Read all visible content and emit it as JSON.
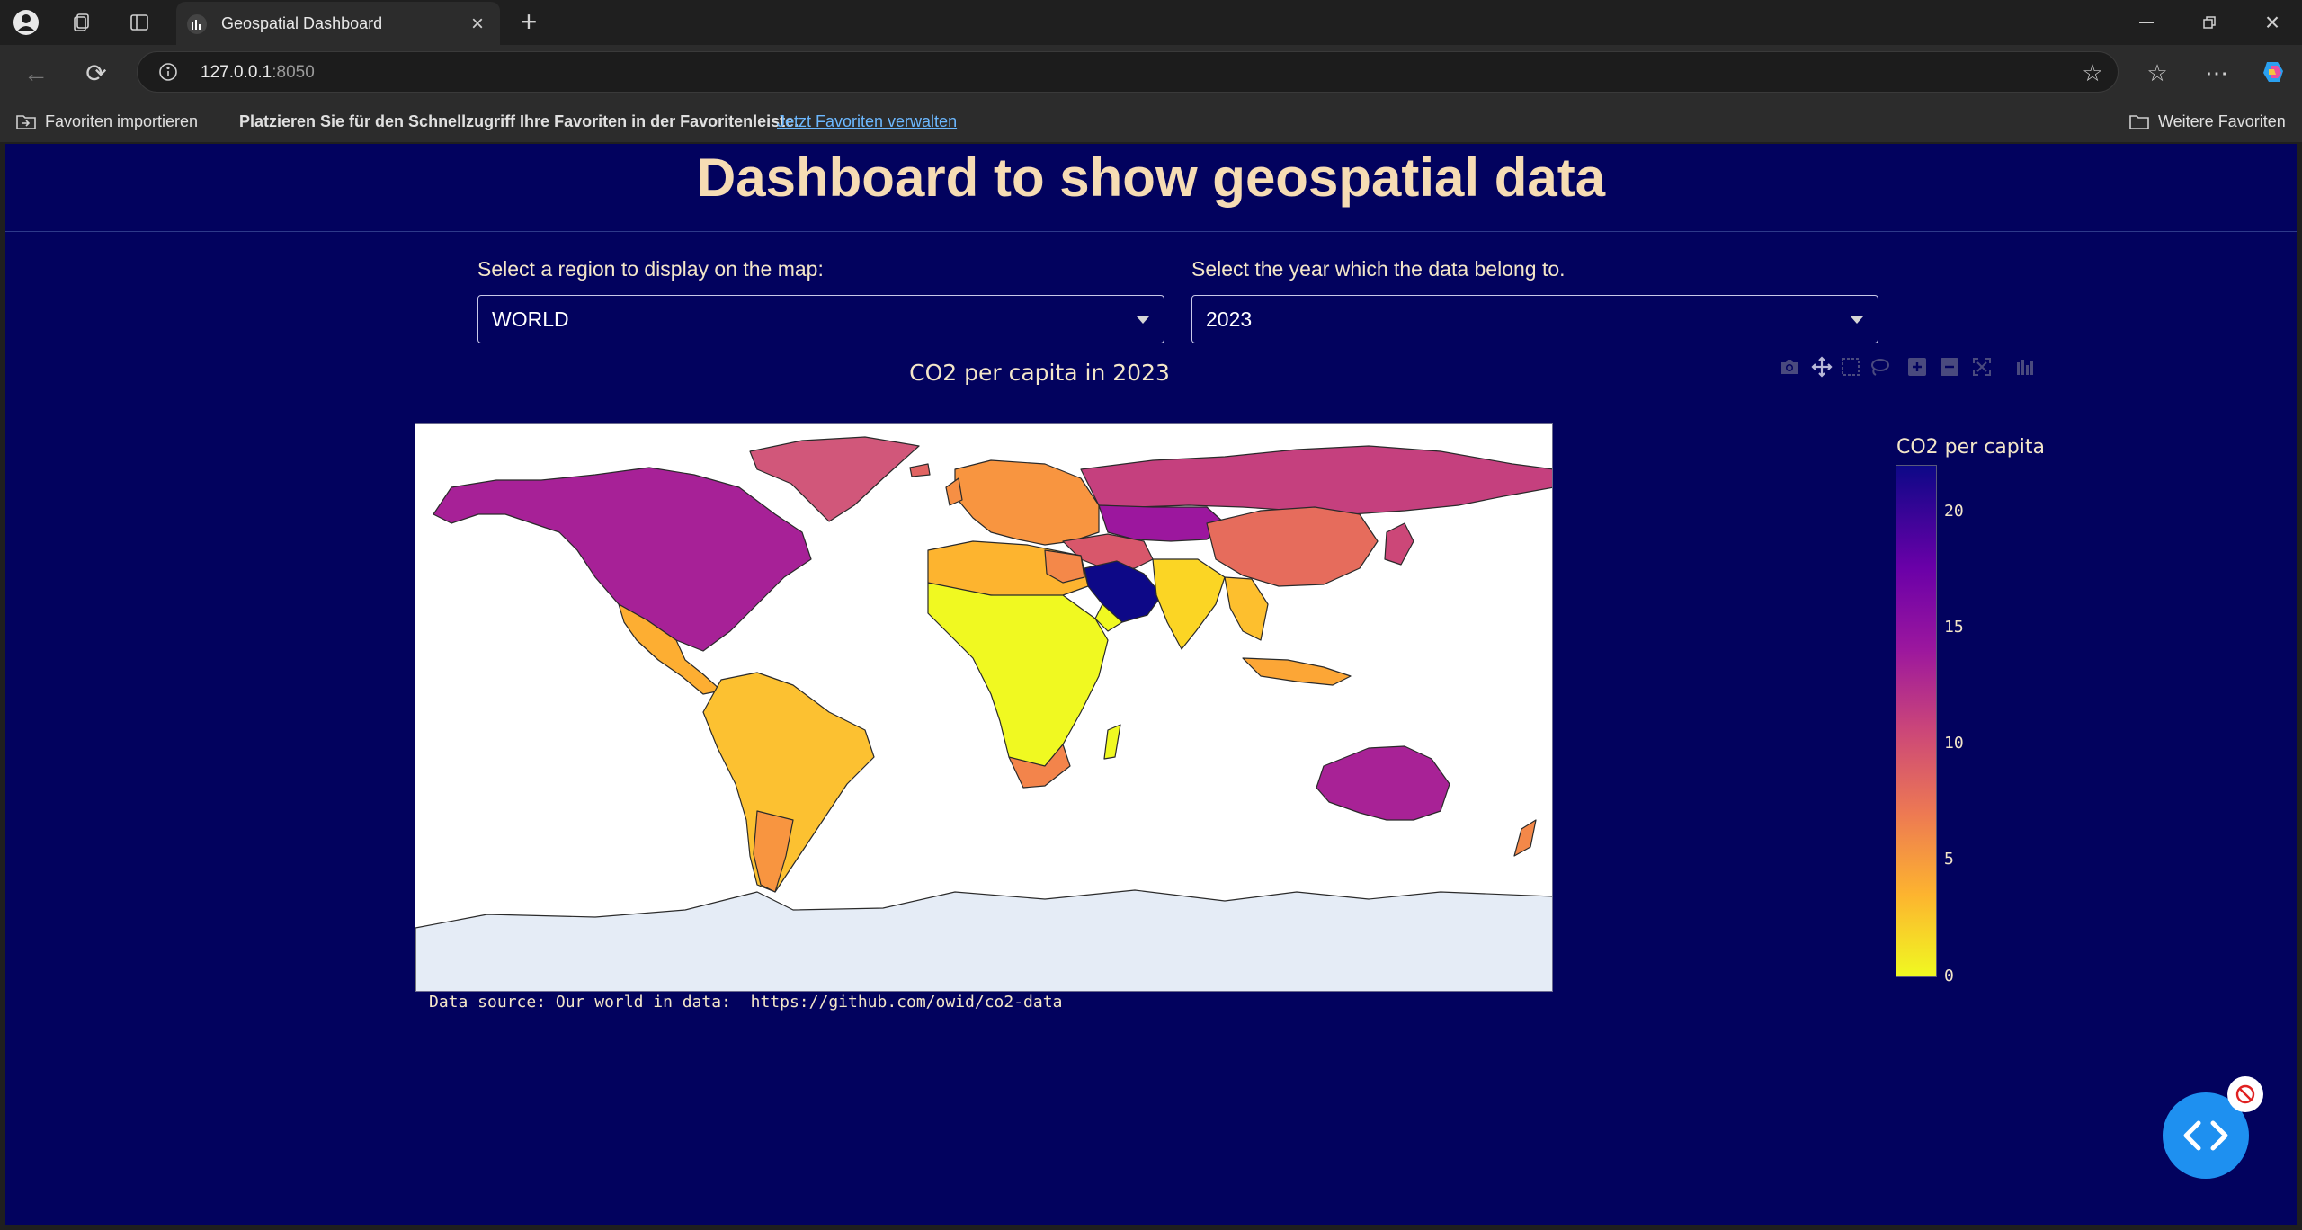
{
  "browser": {
    "tab_title": "Geospatial Dashboard",
    "url_host": "127.0.0.1",
    "url_port": ":8050",
    "favorites_bar": {
      "import_label": "Favoriten importieren",
      "hint_text": "Platzieren Sie für den Schnellzugriff Ihre Favoriten in der Favoritenleiste.",
      "manage_link": "Jetzt Favoriten verwalten",
      "other_favorites": "Weitere Favoriten"
    }
  },
  "dashboard": {
    "title": "Dashboard to show geospatial data",
    "region_label": "Select a region to display on the map:",
    "region_value": "WORLD",
    "year_label": "Select the year which the data belong to.",
    "year_value": "2023"
  },
  "chart": {
    "title": "CO2 per capita in 2023",
    "source": "Data source: Our world in data:  https://github.com/owid/co2-data",
    "colorbar_title": "CO2 per capita",
    "modebar_icons": [
      "camera-icon",
      "pan-icon",
      "box-select-icon",
      "lasso-icon",
      "zoom-in-icon",
      "zoom-out-icon",
      "autoscale-icon",
      "plotly-logo-icon"
    ]
  },
  "chart_data": {
    "type": "choropleth",
    "title": "CO2 per capita in 2023",
    "colorbar_title": "CO2 per capita",
    "colorscale": [
      "#f0f921",
      "#fdb42f",
      "#ed7953",
      "#cc4778",
      "#9c179e",
      "#6a00a8",
      "#0d0887"
    ],
    "colorbar_ticks": [
      "20",
      "15",
      "10",
      "5",
      "0"
    ],
    "colorbar_range": [
      0,
      22
    ],
    "regions": [
      {
        "name": "North America",
        "approx_value": 15
      },
      {
        "name": "Russia",
        "approx_value": 11.5
      },
      {
        "name": "Greenland",
        "approx_value": 10
      },
      {
        "name": "China",
        "approx_value": 8.5
      },
      {
        "name": "Saudi Arabia / Gulf",
        "approx_value": 21
      },
      {
        "name": "Australia",
        "approx_value": 15
      },
      {
        "name": "South America",
        "approx_value": 2.5
      },
      {
        "name": "Africa",
        "approx_value": 1
      },
      {
        "name": "South Africa",
        "approx_value": 7
      },
      {
        "name": "India",
        "approx_value": 2
      },
      {
        "name": "Europe",
        "approx_value": 6
      },
      {
        "name": "Antarctica",
        "approx_value": null
      }
    ]
  }
}
